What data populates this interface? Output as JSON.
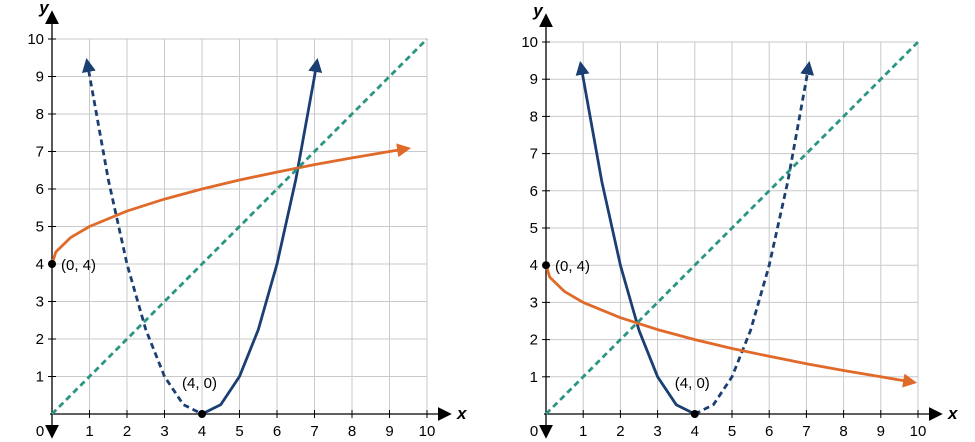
{
  "colors": {
    "parabola": "#1b3f73",
    "sqrt_curve": "#e06a2a",
    "identity_line": "#2a9580",
    "grid": "#c9c9c9",
    "axis": "#000000"
  },
  "chart_data": [
    {
      "type": "line",
      "xlabel": "x",
      "ylabel": "y",
      "xlim": [
        0,
        10
      ],
      "ylim": [
        0,
        10
      ],
      "origin_label": "0",
      "x_ticks": [
        "1",
        "2",
        "3",
        "4",
        "5",
        "6",
        "7",
        "8",
        "9",
        "10"
      ],
      "y_ticks": [
        "1",
        "2",
        "3",
        "4",
        "5",
        "6",
        "7",
        "8",
        "9",
        "10"
      ],
      "grid": true,
      "series": [
        {
          "role": "parabola-left-branch",
          "style": "dashed",
          "color": "#1b3f73",
          "x": [
            0.93,
            1.5,
            2.0,
            2.5,
            3.0,
            3.5,
            4.0
          ],
          "y": [
            9.42,
            6.25,
            4.0,
            2.25,
            1.0,
            0.25,
            0.0
          ]
        },
        {
          "role": "parabola-right-branch",
          "style": "solid",
          "color": "#1b3f73",
          "x": [
            4.0,
            4.5,
            5.0,
            5.5,
            6.0,
            6.5,
            7.0,
            7.07
          ],
          "y": [
            0.0,
            0.25,
            1.0,
            2.25,
            4.0,
            6.25,
            9.0,
            9.42
          ]
        },
        {
          "role": "sqrt-curve",
          "style": "solid",
          "color": "#e06a2a",
          "x": [
            0,
            0.1,
            0.5,
            1,
            2,
            3,
            4,
            5,
            6,
            7,
            8,
            9,
            9.5
          ],
          "y": [
            4.0,
            4.32,
            4.71,
            5.0,
            5.41,
            5.73,
            6.0,
            6.24,
            6.45,
            6.65,
            6.83,
            7.0,
            7.08
          ]
        },
        {
          "role": "identity-line",
          "style": "dashed",
          "color": "#2a9580",
          "x": [
            0,
            10
          ],
          "y": [
            0,
            10
          ]
        }
      ],
      "points": [
        {
          "x": 0,
          "y": 4,
          "label": "(0, 4)"
        },
        {
          "x": 4,
          "y": 0,
          "label": "(4, 0)"
        }
      ]
    },
    {
      "type": "line",
      "xlabel": "x",
      "ylabel": "y",
      "xlim": [
        0,
        10
      ],
      "ylim": [
        0,
        10
      ],
      "origin_label": "0",
      "x_ticks": [
        "1",
        "2",
        "3",
        "4",
        "5",
        "6",
        "7",
        "8",
        "9",
        "10"
      ],
      "y_ticks": [
        "1",
        "2",
        "3",
        "4",
        "5",
        "6",
        "7",
        "8",
        "9",
        "10"
      ],
      "grid": true,
      "series": [
        {
          "role": "parabola-left-branch",
          "style": "solid",
          "color": "#1b3f73",
          "x": [
            0.93,
            1.5,
            2.0,
            2.5,
            3.0,
            3.5,
            4.0
          ],
          "y": [
            9.42,
            6.25,
            4.0,
            2.25,
            1.0,
            0.25,
            0.0
          ]
        },
        {
          "role": "parabola-right-branch",
          "style": "dashed",
          "color": "#1b3f73",
          "x": [
            4.0,
            4.5,
            5.0,
            5.5,
            6.0,
            6.5,
            7.0,
            7.07
          ],
          "y": [
            0.0,
            0.25,
            1.0,
            2.25,
            4.0,
            6.25,
            9.0,
            9.42
          ]
        },
        {
          "role": "decreasing-sqrt-curve",
          "style": "solid",
          "color": "#e06a2a",
          "x": [
            0,
            0.1,
            0.5,
            1,
            2,
            3,
            4,
            5,
            6,
            7,
            8,
            9,
            9.9
          ],
          "y": [
            4.0,
            3.68,
            3.29,
            3.0,
            2.59,
            2.27,
            2.0,
            1.76,
            1.55,
            1.35,
            1.17,
            1.0,
            0.85
          ]
        },
        {
          "role": "identity-line",
          "style": "dashed",
          "color": "#2a9580",
          "x": [
            0,
            10
          ],
          "y": [
            0,
            10
          ]
        }
      ],
      "points": [
        {
          "x": 0,
          "y": 4,
          "label": "(0, 4)"
        },
        {
          "x": 4,
          "y": 0,
          "label": "(4, 0)"
        }
      ]
    }
  ]
}
